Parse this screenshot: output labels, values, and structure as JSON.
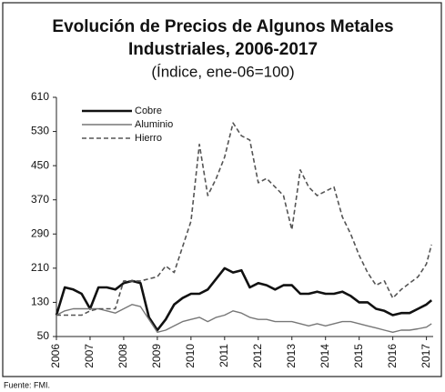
{
  "chart_data": {
    "type": "line",
    "title": "Evolución de Precios de Algunos Metales",
    "title_line2": "Industriales, 2006-2017",
    "subtitle": "(Índice, ene-06=100)",
    "source": "Fuente: FMI.",
    "legend": "upper left",
    "xlim": [
      2006,
      2017.2
    ],
    "xticks": [
      2006,
      2007,
      2008,
      2009,
      2010,
      2011,
      2012,
      2013,
      2014,
      2015,
      2016,
      2017
    ],
    "ylim": [
      50,
      610
    ],
    "yticks": [
      50,
      130,
      210,
      290,
      370,
      450,
      530,
      610
    ],
    "x": [
      2006,
      2006.25,
      2006.5,
      2006.75,
      2007,
      2007.25,
      2007.5,
      2007.75,
      2008,
      2008.25,
      2008.5,
      2008.75,
      2009,
      2009.25,
      2009.5,
      2009.75,
      2010,
      2010.25,
      2010.5,
      2010.75,
      2011,
      2011.25,
      2011.5,
      2011.75,
      2012,
      2012.25,
      2012.5,
      2012.75,
      2013,
      2013.25,
      2013.5,
      2013.75,
      2014,
      2014.25,
      2014.5,
      2014.75,
      2015,
      2015.25,
      2015.5,
      2015.75,
      2016,
      2016.25,
      2016.5,
      2016.75,
      2017,
      2017.15
    ],
    "series": [
      {
        "name": "Cobre",
        "color": "#111111",
        "width": 2.6,
        "style": "solid",
        "values": [
          100,
          165,
          160,
          150,
          115,
          165,
          165,
          160,
          175,
          180,
          175,
          95,
          65,
          90,
          125,
          140,
          150,
          150,
          160,
          185,
          210,
          200,
          205,
          165,
          175,
          170,
          160,
          170,
          170,
          150,
          150,
          155,
          150,
          150,
          155,
          145,
          130,
          130,
          115,
          110,
          100,
          105,
          105,
          115,
          125,
          135
        ]
      },
      {
        "name": "Aluminio",
        "color": "#777777",
        "width": 1.4,
        "style": "solid",
        "values": [
          100,
          110,
          115,
          115,
          115,
          115,
          110,
          105,
          115,
          125,
          120,
          90,
          60,
          65,
          75,
          85,
          90,
          95,
          85,
          95,
          100,
          110,
          105,
          95,
          90,
          90,
          85,
          85,
          85,
          80,
          75,
          80,
          75,
          80,
          85,
          85,
          80,
          75,
          70,
          65,
          60,
          65,
          65,
          68,
          72,
          80
        ]
      },
      {
        "name": "Hierro",
        "color": "#555555",
        "width": 1.6,
        "style": "dashed",
        "values": [
          100,
          100,
          100,
          100,
          110,
          115,
          115,
          115,
          180,
          180,
          180,
          185,
          190,
          215,
          200,
          260,
          320,
          500,
          380,
          420,
          470,
          550,
          520,
          510,
          410,
          420,
          400,
          380,
          300,
          440,
          400,
          380,
          390,
          400,
          330,
          290,
          240,
          200,
          170,
          180,
          140,
          160,
          175,
          190,
          220,
          265
        ]
      }
    ]
  }
}
